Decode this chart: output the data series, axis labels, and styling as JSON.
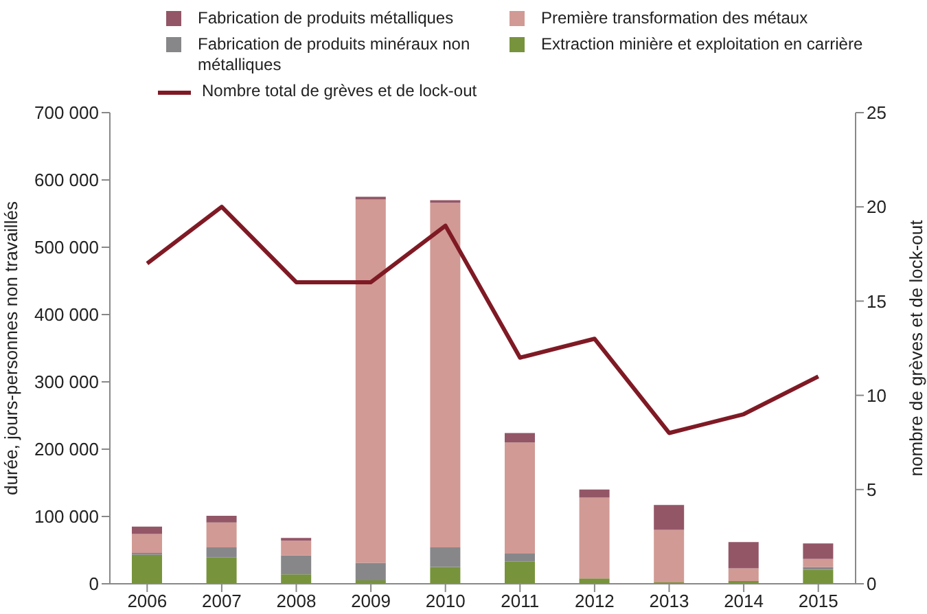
{
  "chart_data": {
    "type": "bar",
    "stacked": true,
    "categories": [
      "2006",
      "2007",
      "2008",
      "2009",
      "2010",
      "2011",
      "2012",
      "2013",
      "2014",
      "2015"
    ],
    "ylabel": "durée, jours-personnes non travaillés",
    "y2label": "nombre de grèves et de lock-out",
    "series": [
      {
        "name": "Extraction minière et exploitation en carrière",
        "color": "#77933c",
        "values": [
          43000,
          39000,
          14000,
          5000,
          25000,
          33000,
          8000,
          2000,
          4000,
          21000
        ]
      },
      {
        "name": "Fabrication de produits minéraux non métalliques",
        "color": "#87878a",
        "values": [
          3000,
          15000,
          28000,
          26000,
          29000,
          12000,
          0,
          0,
          0,
          4000
        ]
      },
      {
        "name": "Première transformation des métaux",
        "color": "#d19a94",
        "values": [
          28000,
          37000,
          22000,
          540000,
          512000,
          165000,
          120000,
          78000,
          19000,
          12000
        ]
      },
      {
        "name": "Fabrication de produits métalliques",
        "color": "#935667",
        "values": [
          11000,
          10000,
          4000,
          4000,
          4000,
          14000,
          12000,
          37000,
          39000,
          23000
        ]
      },
      {
        "name": "Nombre total de grèves et de lock-out",
        "type": "line",
        "axis": "y2",
        "color": "#7f1a25",
        "values": [
          17,
          20,
          16,
          16,
          19,
          12,
          13,
          8,
          9,
          11
        ]
      }
    ],
    "ylim": [
      0,
      700000
    ],
    "yticks": [
      0,
      {
        "value": 100000,
        "label": "100 000"
      },
      {
        "value": 200000,
        "label": "200 000"
      },
      {
        "value": 300000,
        "label": "300 000"
      },
      {
        "value": 400000,
        "label": "400 000"
      },
      {
        "value": 500000,
        "label": "500 000"
      },
      {
        "value": 600000,
        "label": "600 000"
      },
      {
        "value": 700000,
        "label": "700 000"
      }
    ],
    "y2lim": [
      0,
      25
    ],
    "y2ticks": [
      0,
      5,
      10,
      15,
      20,
      25
    ],
    "grid": false,
    "legend": "top",
    "marker": "none"
  }
}
